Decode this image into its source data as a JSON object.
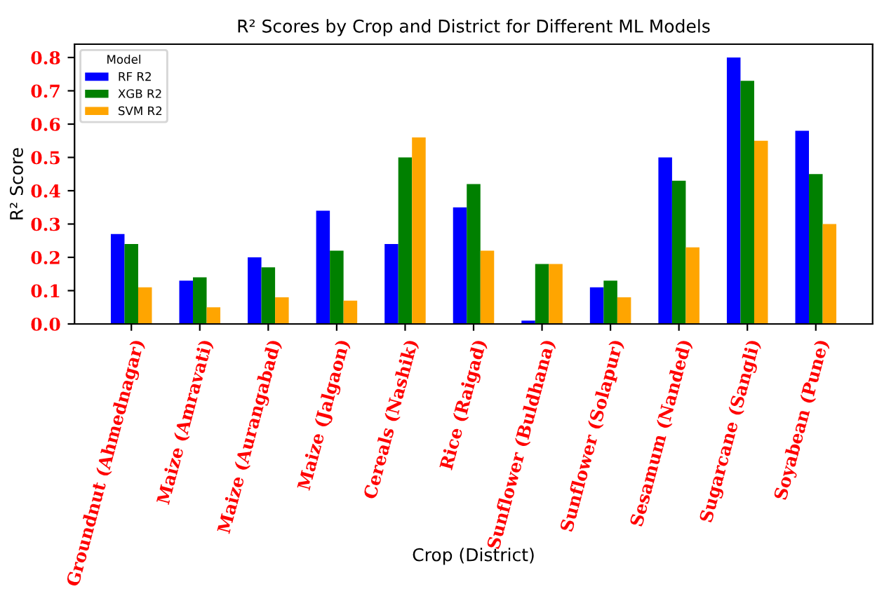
{
  "chart_data": {
    "type": "bar",
    "title": "R² Scores by Crop and District for Different ML Models",
    "xlabel": "Crop (District)",
    "ylabel": "R² Score",
    "legend_title": "Model",
    "categories": [
      "Groundnut (Ahmednagar)",
      "Maize (Amravati)",
      "Maize (Aurangabad)",
      "Maize (Jalgaon)",
      "Cereals (Nashik)",
      "Rice (Raigad)",
      "Sunflower (Buldhana)",
      "Sunflower (Solapur)",
      "Sesamum (Nanded)",
      "Sugarcane (Sangli)",
      "Soyabean (Pune)"
    ],
    "series": [
      {
        "name": "RF R2",
        "color": "#0000ff",
        "values": [
          0.27,
          0.13,
          0.2,
          0.34,
          0.24,
          0.35,
          0.01,
          0.11,
          0.5,
          0.8,
          0.58
        ]
      },
      {
        "name": "XGB R2",
        "color": "#008000",
        "values": [
          0.24,
          0.14,
          0.17,
          0.22,
          0.5,
          0.42,
          0.18,
          0.13,
          0.43,
          0.73,
          0.45
        ]
      },
      {
        "name": "SVM R2",
        "color": "#ffa500",
        "values": [
          0.11,
          0.05,
          0.08,
          0.07,
          0.56,
          0.22,
          0.18,
          0.08,
          0.23,
          0.55,
          0.3
        ]
      }
    ],
    "ylim": [
      0,
      0.84
    ],
    "yticks": [
      {
        "value": 0,
        "label": "0.0"
      },
      0.1,
      0.2,
      0.3,
      0.4,
      0.5,
      0.6,
      0.7,
      0.8
    ],
    "grid": false,
    "legend": "top left"
  }
}
